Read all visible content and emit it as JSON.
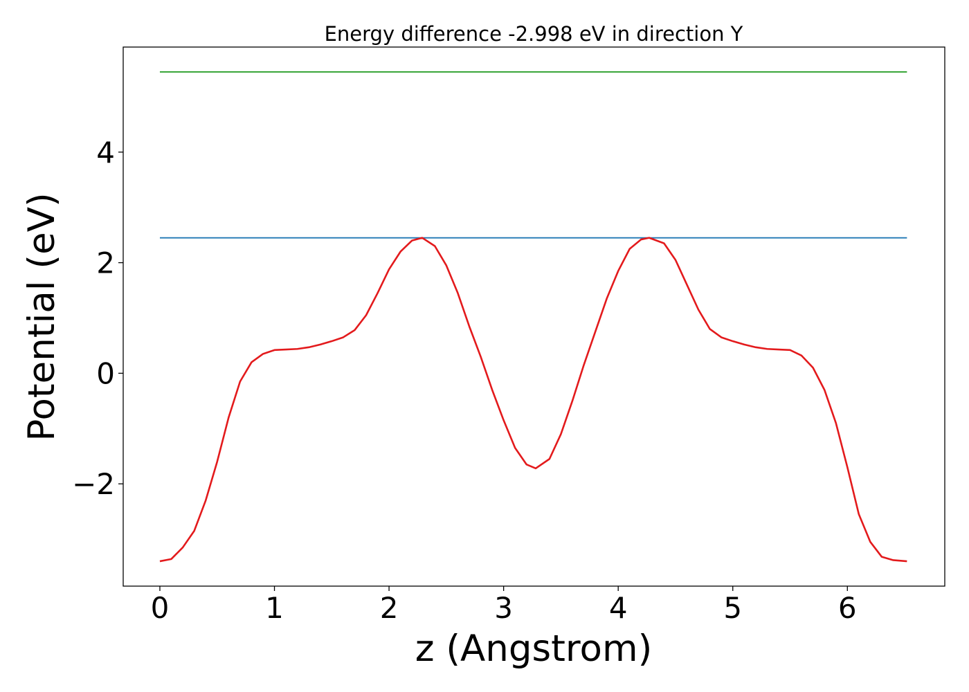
{
  "chart_data": {
    "type": "line",
    "title": "Energy difference -2.998 eV in direction Y",
    "xlabel": "z (Angstrom)",
    "ylabel": "Potential (eV)",
    "xlim": [
      -0.32,
      6.85
    ],
    "ylim": [
      -3.85,
      5.9
    ],
    "x_ticks": [
      0,
      1,
      2,
      3,
      4,
      5,
      6
    ],
    "x_tick_labels": [
      "0",
      "1",
      "2",
      "3",
      "4",
      "5",
      "6"
    ],
    "y_ticks": [
      -2,
      0,
      2,
      4
    ],
    "y_tick_labels": [
      "−2",
      "0",
      "2",
      "4"
    ],
    "grid": false,
    "series": [
      {
        "color": "#2ca02c",
        "x": [
          0,
          6.52
        ],
        "y": [
          5.45,
          5.45
        ]
      },
      {
        "color": "#1f77b4",
        "x": [
          0,
          6.52
        ],
        "y": [
          2.45,
          2.45
        ]
      },
      {
        "color": "#e31a1c",
        "x": [
          0,
          0.1,
          0.2,
          0.3,
          0.4,
          0.5,
          0.6,
          0.7,
          0.8,
          0.9,
          1.0,
          1.1,
          1.2,
          1.3,
          1.4,
          1.5,
          1.6,
          1.7,
          1.8,
          1.9,
          2.0,
          2.1,
          2.2,
          2.29,
          2.4,
          2.5,
          2.6,
          2.7,
          2.8,
          2.9,
          3.0,
          3.1,
          3.2,
          3.28,
          3.4,
          3.5,
          3.6,
          3.7,
          3.8,
          3.9,
          4.0,
          4.1,
          4.2,
          4.27,
          4.4,
          4.5,
          4.6,
          4.7,
          4.8,
          4.9,
          5.0,
          5.1,
          5.2,
          5.3,
          5.4,
          5.5,
          5.6,
          5.7,
          5.8,
          5.9,
          6.0,
          6.1,
          6.2,
          6.3,
          6.4,
          6.52
        ],
        "y": [
          -3.4,
          -3.36,
          -3.15,
          -2.85,
          -2.3,
          -1.6,
          -0.8,
          -0.15,
          0.2,
          0.35,
          0.42,
          0.43,
          0.44,
          0.47,
          0.52,
          0.58,
          0.65,
          0.78,
          1.05,
          1.45,
          1.88,
          2.2,
          2.4,
          2.45,
          2.3,
          1.95,
          1.45,
          0.85,
          0.3,
          -0.3,
          -0.85,
          -1.35,
          -1.65,
          -1.72,
          -1.55,
          -1.1,
          -0.5,
          0.15,
          0.75,
          1.35,
          1.85,
          2.25,
          2.42,
          2.45,
          2.35,
          2.05,
          1.6,
          1.15,
          0.8,
          0.65,
          0.58,
          0.52,
          0.47,
          0.44,
          0.43,
          0.42,
          0.32,
          0.1,
          -0.3,
          -0.9,
          -1.7,
          -2.55,
          -3.05,
          -3.32,
          -3.38,
          -3.4
        ]
      }
    ]
  }
}
